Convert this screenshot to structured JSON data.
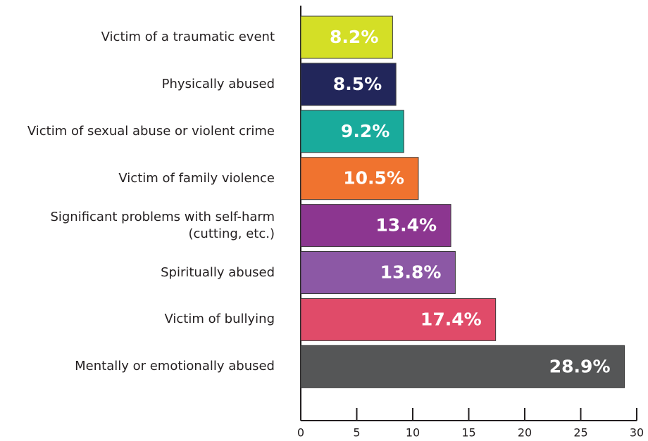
{
  "chart_data": {
    "type": "barh",
    "categories": [
      "Victim of a traumatic event",
      "Physically abused",
      "Victim of sexual abuse or violent crime",
      "Victim of family violence",
      "Significant problems with self-harm\n(cutting, etc.)",
      "Spiritually abused",
      "Victim of bullying",
      "Mentally or emotionally abused"
    ],
    "values": [
      8.2,
      8.5,
      9.2,
      10.5,
      13.4,
      13.8,
      17.4,
      28.9
    ],
    "value_labels": [
      "8.2%",
      "8.5%",
      "9.2%",
      "10.5%",
      "13.4%",
      "13.8%",
      "17.4%",
      "28.9%"
    ],
    "colors": [
      "#d4df26",
      "#22265a",
      "#19ab9c",
      "#f0732f",
      "#8c3690",
      "#8c58a5",
      "#e04b69",
      "#555657"
    ],
    "xlim": [
      0,
      30
    ],
    "xticks": [
      0,
      5,
      10,
      15,
      20,
      25,
      30
    ]
  }
}
